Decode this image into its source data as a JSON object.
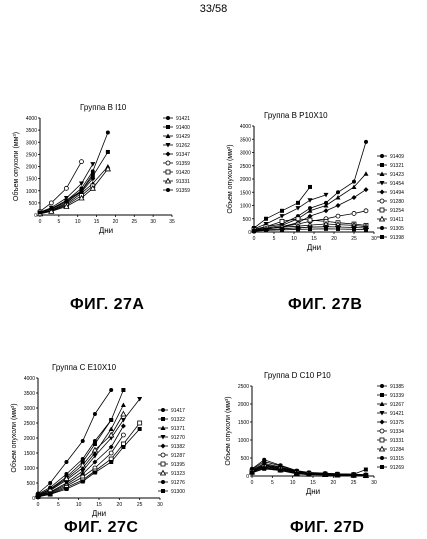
{
  "page_number": "33/58",
  "charts": [
    {
      "id": "27A",
      "caption": "ФИГ. 27А",
      "title": "Группа",
      "title_group": "B I10",
      "ylabel": "Объем опухоли (мм³)",
      "xlabel": "Дни",
      "x_ticks": [
        "0",
        "5",
        "10",
        "15",
        "20",
        "25",
        "30",
        "35"
      ],
      "y_ticks": [
        "0",
        "500",
        "1000",
        "1500",
        "2000",
        "2500",
        "3000",
        "3500",
        "4000"
      ],
      "legend": [
        "91421",
        "91400",
        "91429",
        "91262",
        "91347",
        "91359",
        "91420",
        "91331",
        "91359"
      ]
    },
    {
      "id": "27B",
      "caption": "ФИГ. 27В",
      "title": "Группа",
      "title_group": "B P10X10",
      "ylabel": "Объем опухоли (мм³)",
      "xlabel": "Дни",
      "x_ticks": [
        "0",
        "5",
        "10",
        "15",
        "20",
        "25",
        "30"
      ],
      "y_ticks": [
        "0",
        "500",
        "1000",
        "1500",
        "2000",
        "2500",
        "3000",
        "3500",
        "4000"
      ],
      "legend": [
        "91409",
        "91321",
        "91423",
        "91454",
        "91494",
        "91280",
        "91254",
        "91411",
        "91305",
        "91398"
      ]
    },
    {
      "id": "27C",
      "caption": "ФИГ. 27С",
      "title": "Группа",
      "title_group": "C E10X10",
      "ylabel": "Объем опухоли (мм³)",
      "xlabel": "Дни",
      "x_ticks": [
        "0",
        "5",
        "10",
        "15",
        "20",
        "25",
        "30"
      ],
      "y_ticks": [
        "0",
        "500",
        "1000",
        "1500",
        "2000",
        "2500",
        "3000",
        "3500",
        "4000"
      ],
      "legend": [
        "91417",
        "91322",
        "91371",
        "91270",
        "91382",
        "91287",
        "91395",
        "91323",
        "91276",
        "91300"
      ]
    },
    {
      "id": "27D",
      "caption": "ФИГ. 27D",
      "title": "Группа",
      "title_group": "D C10 P10",
      "ylabel": "Объем опухоли (мм³)",
      "xlabel": "Дни",
      "x_ticks": [
        "0",
        "5",
        "10",
        "15",
        "20",
        "25",
        "30"
      ],
      "y_ticks": [
        "0",
        "500",
        "1000",
        "1500",
        "2000",
        "2500"
      ],
      "legend": [
        "91385",
        "91339",
        "91267",
        "91421",
        "91375",
        "91334",
        "91331",
        "91284",
        "91315",
        "91269"
      ]
    }
  ],
  "chart_data": [
    {
      "type": "line",
      "xlim": [
        0,
        35
      ],
      "ylim": [
        0,
        4000
      ],
      "series": [
        {
          "name": "91421",
          "x": [
            0,
            3,
            7,
            11,
            14,
            18
          ],
          "y": [
            100,
            250,
            600,
            1100,
            1800,
            3400
          ]
        },
        {
          "name": "91400",
          "x": [
            0,
            3,
            7,
            11,
            14,
            18
          ],
          "y": [
            80,
            200,
            500,
            1000,
            1600,
            2600
          ]
        },
        {
          "name": "91429",
          "x": [
            0,
            3,
            7,
            11,
            14,
            18
          ],
          "y": [
            60,
            180,
            450,
            900,
            1300,
            2000
          ]
        },
        {
          "name": "91262",
          "x": [
            0,
            3,
            7,
            11,
            14
          ],
          "y": [
            120,
            300,
            700,
            1300,
            2100
          ]
        },
        {
          "name": "91347",
          "x": [
            0,
            3,
            7,
            11,
            14
          ],
          "y": [
            90,
            240,
            550,
            950,
            1500
          ]
        },
        {
          "name": "91359",
          "x": [
            0,
            3,
            7,
            11
          ],
          "y": [
            150,
            500,
            1100,
            2200
          ]
        },
        {
          "name": "91420",
          "x": [
            0,
            3,
            7,
            11,
            14
          ],
          "y": [
            70,
            160,
            400,
            800,
            1200
          ]
        },
        {
          "name": "91331",
          "x": [
            0,
            3,
            7,
            11,
            14,
            18
          ],
          "y": [
            50,
            150,
            350,
            700,
            1100,
            1900
          ]
        },
        {
          "name": "91359",
          "x": [
            0,
            3,
            7,
            11,
            14
          ],
          "y": [
            110,
            260,
            600,
            1000,
            1700
          ]
        }
      ]
    },
    {
      "type": "line",
      "xlim": [
        0,
        30
      ],
      "ylim": [
        0,
        4000
      ],
      "series": [
        {
          "name": "91409",
          "x": [
            0,
            3,
            7,
            11,
            14,
            18,
            21,
            25,
            28
          ],
          "y": [
            100,
            200,
            300,
            600,
            900,
            1100,
            1500,
            1900,
            3400
          ]
        },
        {
          "name": "91321",
          "x": [
            0,
            3,
            7,
            11,
            14
          ],
          "y": [
            150,
            500,
            800,
            1100,
            1700
          ]
        },
        {
          "name": "91423",
          "x": [
            0,
            3,
            7,
            11,
            14,
            18,
            21,
            25,
            28
          ],
          "y": [
            80,
            150,
            250,
            500,
            800,
            1000,
            1300,
            1700,
            2200
          ]
        },
        {
          "name": "91454",
          "x": [
            0,
            3,
            7,
            11,
            14,
            18
          ],
          "y": [
            120,
            300,
            600,
            900,
            1200,
            1400
          ]
        },
        {
          "name": "91494",
          "x": [
            0,
            3,
            7,
            11,
            14,
            18,
            21,
            25,
            28
          ],
          "y": [
            60,
            120,
            200,
            350,
            600,
            800,
            1000,
            1300,
            1600
          ]
        },
        {
          "name": "91280",
          "x": [
            0,
            3,
            7,
            11,
            14,
            18,
            21,
            25,
            28
          ],
          "y": [
            50,
            100,
            200,
            300,
            400,
            500,
            600,
            700,
            800
          ]
        },
        {
          "name": "91254",
          "x": [
            0,
            3,
            7,
            11,
            14,
            18,
            21,
            25,
            28
          ],
          "y": [
            90,
            200,
            400,
            500,
            450,
            400,
            350,
            300,
            250
          ]
        },
        {
          "name": "91411",
          "x": [
            0,
            3,
            7,
            11,
            14,
            18,
            21,
            25,
            28
          ],
          "y": [
            70,
            130,
            180,
            220,
            260,
            300,
            280,
            250,
            200
          ]
        },
        {
          "name": "91305",
          "x": [
            0,
            3,
            7,
            11,
            14,
            18,
            21,
            25,
            28
          ],
          "y": [
            40,
            80,
            120,
            160,
            180,
            200,
            190,
            170,
            150
          ]
        },
        {
          "name": "91398",
          "x": [
            0,
            3,
            7,
            11,
            14,
            18,
            21,
            25,
            28
          ],
          "y": [
            30,
            60,
            80,
            100,
            110,
            120,
            115,
            100,
            90
          ]
        }
      ]
    },
    {
      "type": "line",
      "xlim": [
        0,
        30
      ],
      "ylim": [
        0,
        4000
      ],
      "series": [
        {
          "name": "91417",
          "x": [
            0,
            3,
            7,
            11,
            14,
            18
          ],
          "y": [
            150,
            500,
            1200,
            1900,
            2800,
            3600
          ]
        },
        {
          "name": "91322",
          "x": [
            0,
            3,
            7,
            11,
            14,
            18,
            21
          ],
          "y": [
            100,
            300,
            700,
            1200,
            1800,
            2600,
            3600
          ]
        },
        {
          "name": "91371",
          "x": [
            0,
            3,
            7,
            11,
            14,
            18,
            21
          ],
          "y": [
            80,
            250,
            600,
            1000,
            1500,
            2300,
            3100
          ]
        },
        {
          "name": "91270",
          "x": [
            0,
            3,
            7,
            11,
            14,
            18,
            21,
            25
          ],
          "y": [
            90,
            200,
            500,
            900,
            1400,
            2000,
            2600,
            3300
          ]
        },
        {
          "name": "91382",
          "x": [
            0,
            3,
            7,
            11,
            14,
            18,
            21
          ],
          "y": [
            70,
            180,
            450,
            800,
            1200,
            1700,
            2400
          ]
        },
        {
          "name": "91287",
          "x": [
            0,
            3,
            7,
            11,
            14,
            18,
            21
          ],
          "y": [
            60,
            150,
            400,
            700,
            1000,
            1500,
            2100
          ]
        },
        {
          "name": "91395",
          "x": [
            0,
            3,
            7,
            11,
            14,
            18,
            21,
            25
          ],
          "y": [
            50,
            130,
            350,
            600,
            900,
            1300,
            1800,
            2500
          ]
        },
        {
          "name": "91323",
          "x": [
            0,
            3,
            7,
            11,
            14,
            18,
            21
          ],
          "y": [
            110,
            280,
            650,
            1100,
            1600,
            2100,
            2800
          ]
        },
        {
          "name": "91276",
          "x": [
            0,
            3,
            7,
            11,
            14,
            18
          ],
          "y": [
            130,
            350,
            800,
            1300,
            1900,
            2600
          ]
        },
        {
          "name": "91300",
          "x": [
            0,
            3,
            7,
            11,
            14,
            18,
            21,
            25
          ],
          "y": [
            40,
            120,
            300,
            550,
            850,
            1200,
            1700,
            2300
          ]
        }
      ]
    },
    {
      "type": "line",
      "xlim": [
        0,
        30
      ],
      "ylim": [
        0,
        2500
      ],
      "series": [
        {
          "name": "91385",
          "x": [
            0,
            3,
            7,
            11,
            14,
            18,
            21,
            25,
            28
          ],
          "y": [
            200,
            450,
            300,
            150,
            100,
            80,
            60,
            50,
            40
          ]
        },
        {
          "name": "91339",
          "x": [
            0,
            3,
            7,
            11,
            14,
            18,
            21,
            25,
            28
          ],
          "y": [
            180,
            400,
            280,
            140,
            90,
            70,
            60,
            50,
            180
          ]
        },
        {
          "name": "91267",
          "x": [
            0,
            3,
            7,
            11,
            14,
            18,
            21,
            25,
            28
          ],
          "y": [
            160,
            350,
            250,
            130,
            80,
            60,
            50,
            40,
            30
          ]
        },
        {
          "name": "91421",
          "x": [
            0,
            3,
            7,
            11,
            14,
            18,
            21,
            25,
            28
          ],
          "y": [
            150,
            320,
            230,
            120,
            70,
            60,
            50,
            40,
            30
          ]
        },
        {
          "name": "91375",
          "x": [
            0,
            3,
            7,
            11,
            14,
            18,
            21,
            25,
            28
          ],
          "y": [
            140,
            300,
            220,
            110,
            70,
            50,
            40,
            30,
            20
          ]
        },
        {
          "name": "91334",
          "x": [
            0,
            3,
            7,
            11,
            14,
            18,
            21,
            25,
            28
          ],
          "y": [
            130,
            280,
            200,
            100,
            60,
            50,
            40,
            30,
            20
          ]
        },
        {
          "name": "91331",
          "x": [
            0,
            3,
            7,
            11,
            14,
            18,
            21,
            25,
            28
          ],
          "y": [
            120,
            260,
            190,
            90,
            60,
            40,
            30,
            20,
            10
          ]
        },
        {
          "name": "91284",
          "x": [
            0,
            3,
            7,
            11,
            14,
            18,
            21,
            25,
            28
          ],
          "y": [
            110,
            240,
            170,
            80,
            50,
            40,
            30,
            20,
            10
          ]
        },
        {
          "name": "91315",
          "x": [
            0,
            3,
            7,
            11,
            14,
            18,
            21,
            25,
            28
          ],
          "y": [
            100,
            220,
            160,
            70,
            40,
            30,
            20,
            10,
            10
          ]
        },
        {
          "name": "91269",
          "x": [
            0,
            3,
            7,
            11,
            14,
            18,
            21,
            25,
            28
          ],
          "y": [
            90,
            200,
            150,
            60,
            40,
            30,
            20,
            10,
            10
          ]
        }
      ]
    }
  ]
}
